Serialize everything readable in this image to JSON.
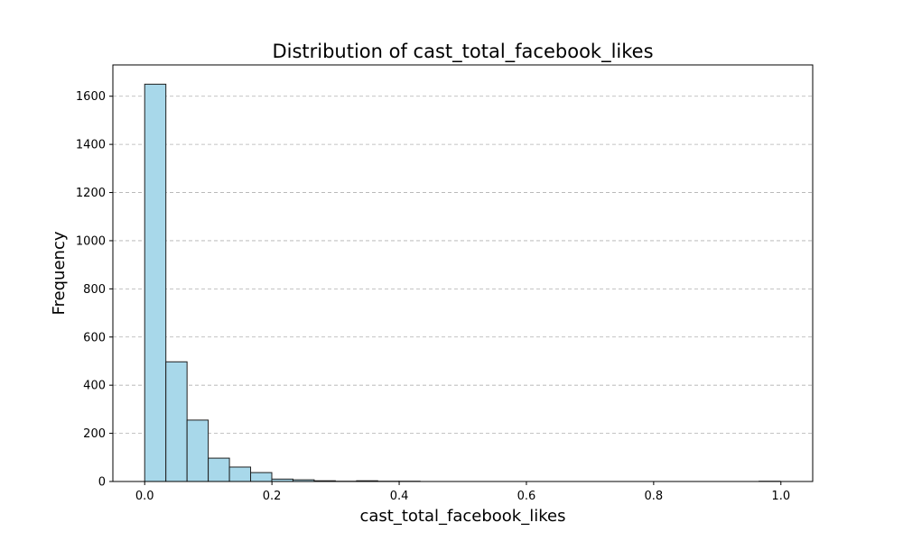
{
  "chart_data": {
    "type": "bar",
    "title": "Distribution of cast_total_facebook_likes",
    "xlabel": "cast_total_facebook_likes",
    "ylabel": "Frequency",
    "xlim": [
      -0.05,
      1.05
    ],
    "ylim": [
      0,
      1730
    ],
    "xticks": [
      0.0,
      0.2,
      0.4,
      0.6,
      0.8,
      1.0
    ],
    "xtick_labels": [
      "0.0",
      "0.2",
      "0.4",
      "0.6",
      "0.8",
      "1.0"
    ],
    "yticks": [
      0,
      200,
      400,
      600,
      800,
      1000,
      1200,
      1400,
      1600
    ],
    "ytick_labels": [
      "0",
      "200",
      "400",
      "600",
      "800",
      "1000",
      "1200",
      "1400",
      "1600"
    ],
    "grid": "y-dashed",
    "bin_width": 0.0333,
    "bin_edges_start": 0.0,
    "values": [
      1650,
      497,
      255,
      97,
      60,
      37,
      10,
      7,
      3,
      1,
      3,
      1,
      1,
      0,
      0,
      0,
      0,
      0,
      0,
      0,
      0,
      0,
      0,
      0,
      0,
      0,
      0,
      0,
      0,
      1
    ],
    "bar_color": "#a8d8ea",
    "edge_color": "#1f1f1f"
  }
}
